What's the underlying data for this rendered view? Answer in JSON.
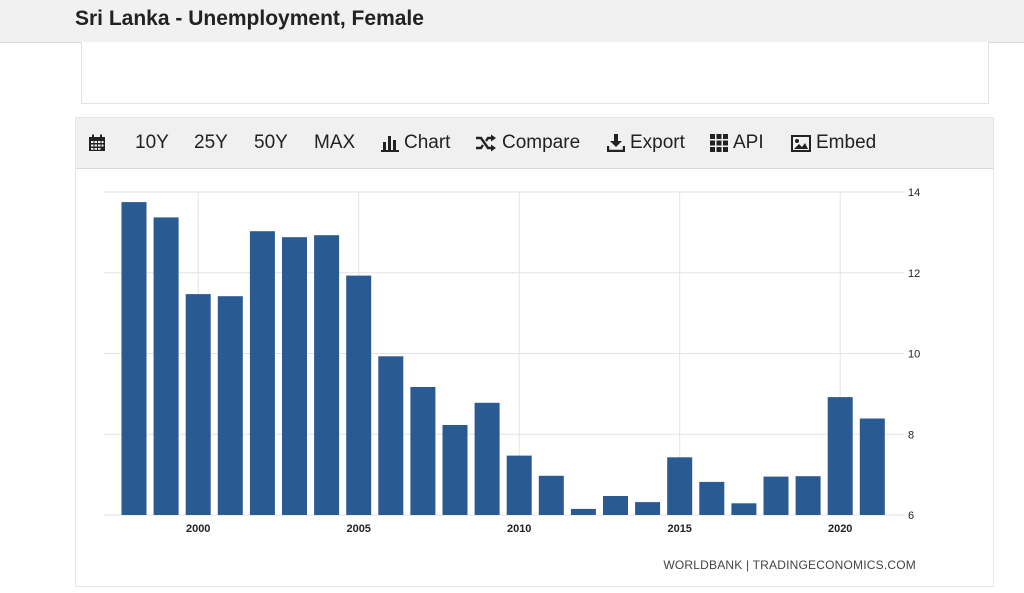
{
  "header": {
    "title": "Sri Lanka - Unemployment, Female"
  },
  "toolbar": {
    "calendar_icon": "calendar-icon",
    "btn_10y": "10Y",
    "btn_25y": "25Y",
    "btn_50y": "50Y",
    "btn_max": "MAX",
    "chart_label": "Chart",
    "compare_label": "Compare",
    "export_label": "Export",
    "api_label": "API",
    "embed_label": "Embed"
  },
  "chart_data": {
    "type": "bar",
    "x": [
      1998,
      1999,
      2000,
      2001,
      2002,
      2003,
      2004,
      2005,
      2006,
      2007,
      2008,
      2009,
      2010,
      2011,
      2012,
      2013,
      2014,
      2015,
      2016,
      2017,
      2018,
      2019,
      2020,
      2021
    ],
    "values": [
      13.75,
      13.37,
      11.47,
      11.42,
      13.03,
      12.88,
      12.93,
      11.93,
      9.93,
      9.17,
      8.23,
      8.78,
      7.47,
      6.97,
      6.15,
      6.47,
      6.32,
      7.43,
      6.82,
      6.29,
      6.95,
      6.96,
      8.92,
      8.39
    ],
    "series_color": "#2a5a92",
    "ylim": [
      6,
      14
    ],
    "yticks": [
      6,
      8,
      10,
      12,
      14
    ],
    "xticks": [
      2000,
      2005,
      2010,
      2015,
      2020
    ],
    "y_axis_position": "right",
    "grid": true,
    "source": "WORLDBANK | TRADINGECONOMICS.COM"
  }
}
